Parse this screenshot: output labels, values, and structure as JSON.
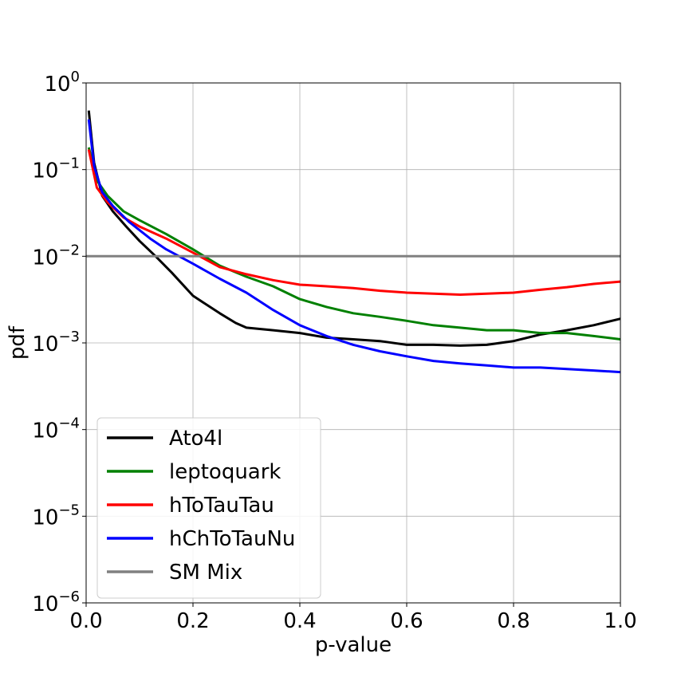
{
  "chart_data": {
    "type": "line",
    "xlabel": "p-value",
    "ylabel": "pdf",
    "xlim": [
      0.0,
      1.0
    ],
    "ylim": [
      1e-06,
      1.0
    ],
    "yscale": "log",
    "grid": true,
    "legend_position": "lower-left",
    "x_ticks": [
      {
        "value": 0.0,
        "label": "0.0"
      },
      {
        "value": 0.2,
        "label": "0.2"
      },
      {
        "value": 0.4,
        "label": "0.4"
      },
      {
        "value": 0.6,
        "label": "0.6"
      },
      {
        "value": 0.8,
        "label": "0.8"
      },
      {
        "value": 1.0,
        "label": "1.0"
      }
    ],
    "y_ticks": [
      {
        "value": 1e-06,
        "base": "10",
        "exp": "−6"
      },
      {
        "value": 1e-05,
        "base": "10",
        "exp": "−5"
      },
      {
        "value": 0.0001,
        "base": "10",
        "exp": "−4"
      },
      {
        "value": 0.001,
        "base": "10",
        "exp": "−3"
      },
      {
        "value": 0.01,
        "base": "10",
        "exp": "−2"
      },
      {
        "value": 0.1,
        "base": "10",
        "exp": "−1"
      },
      {
        "value": 1.0,
        "base": "10",
        "exp": "0"
      }
    ],
    "series": [
      {
        "name": "Ato4l",
        "color": "#000000",
        "x": [
          0.005,
          0.015,
          0.03,
          0.05,
          0.075,
          0.1,
          0.13,
          0.16,
          0.2,
          0.25,
          0.28,
          0.3,
          0.35,
          0.4,
          0.45,
          0.5,
          0.55,
          0.6,
          0.65,
          0.7,
          0.75,
          0.8,
          0.85,
          0.9,
          0.95,
          1.0
        ],
        "y": [
          0.48,
          0.12,
          0.05,
          0.033,
          0.022,
          0.015,
          0.01,
          0.0065,
          0.0035,
          0.0022,
          0.0017,
          0.0015,
          0.0014,
          0.0013,
          0.00115,
          0.0011,
          0.00105,
          0.00095,
          0.00095,
          0.00093,
          0.00095,
          0.00105,
          0.00125,
          0.0014,
          0.0016,
          0.0019
        ]
      },
      {
        "name": "leptoquark",
        "color": "#008000",
        "x": [
          0.005,
          0.02,
          0.04,
          0.07,
          0.1,
          0.15,
          0.2,
          0.25,
          0.3,
          0.35,
          0.4,
          0.45,
          0.5,
          0.55,
          0.6,
          0.65,
          0.7,
          0.75,
          0.8,
          0.85,
          0.9,
          0.95,
          1.0
        ],
        "y": [
          0.18,
          0.075,
          0.05,
          0.033,
          0.026,
          0.018,
          0.012,
          0.0078,
          0.0058,
          0.0045,
          0.0032,
          0.0026,
          0.0022,
          0.002,
          0.0018,
          0.0016,
          0.0015,
          0.0014,
          0.0014,
          0.0013,
          0.0013,
          0.0012,
          0.0011
        ]
      },
      {
        "name": "hToTauTau",
        "color": "#ff0000",
        "x": [
          0.005,
          0.02,
          0.04,
          0.07,
          0.1,
          0.15,
          0.2,
          0.25,
          0.3,
          0.35,
          0.4,
          0.45,
          0.5,
          0.55,
          0.6,
          0.65,
          0.7,
          0.75,
          0.8,
          0.85,
          0.9,
          0.95,
          1.0
        ],
        "y": [
          0.17,
          0.062,
          0.042,
          0.028,
          0.022,
          0.016,
          0.011,
          0.0075,
          0.0062,
          0.0053,
          0.0047,
          0.0045,
          0.0043,
          0.004,
          0.0038,
          0.0037,
          0.0036,
          0.0037,
          0.0038,
          0.0041,
          0.0044,
          0.0048,
          0.0051
        ]
      },
      {
        "name": "hChToTauNu",
        "color": "#0000ff",
        "x": [
          0.005,
          0.015,
          0.03,
          0.05,
          0.08,
          0.12,
          0.15,
          0.2,
          0.25,
          0.3,
          0.35,
          0.4,
          0.45,
          0.5,
          0.55,
          0.6,
          0.65,
          0.7,
          0.75,
          0.8,
          0.85,
          0.9,
          0.95,
          1.0
        ],
        "y": [
          0.38,
          0.11,
          0.055,
          0.038,
          0.025,
          0.016,
          0.012,
          0.0082,
          0.0055,
          0.0038,
          0.0024,
          0.0016,
          0.0012,
          0.00095,
          0.0008,
          0.0007,
          0.00062,
          0.00058,
          0.00055,
          0.00052,
          0.00052,
          0.0005,
          0.00048,
          0.00046
        ]
      },
      {
        "name": "SM Mix",
        "color": "#808080",
        "x": [
          0.0,
          0.1,
          0.2,
          0.3,
          0.4,
          0.5,
          0.6,
          0.7,
          0.8,
          0.9,
          1.0
        ],
        "y": [
          0.01,
          0.01,
          0.01,
          0.01,
          0.01,
          0.01,
          0.01,
          0.01,
          0.01,
          0.01,
          0.01
        ]
      }
    ]
  }
}
